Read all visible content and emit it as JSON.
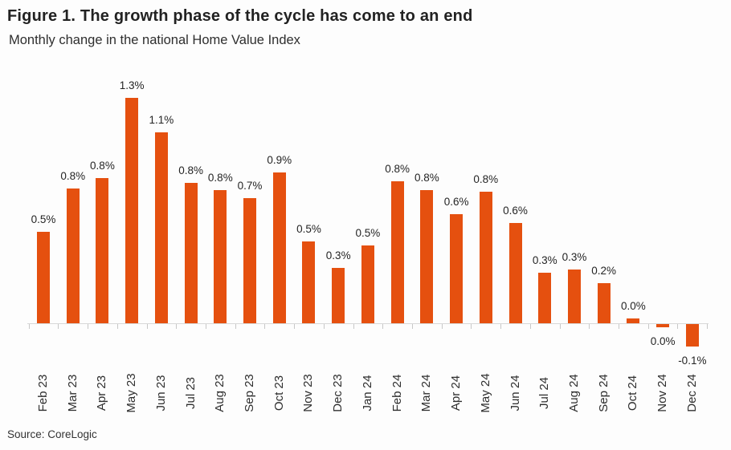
{
  "figure": {
    "title": "Figure 1. The growth phase of the cycle has come to an end",
    "subtitle": "Monthly change in the national Home Value Index",
    "source": "Source: CoreLogic"
  },
  "colors": {
    "bar": "#E5500F",
    "axis": "#D8D8D8",
    "tick": "#C8C8C8",
    "text": "#242424"
  },
  "chart_data": {
    "type": "bar",
    "title": "Figure 1. The growth phase of the cycle has come to an end",
    "subtitle": "Monthly change in the national Home Value Index",
    "source": "Source: CoreLogic",
    "unit": "%",
    "xlabel": "",
    "ylabel": "",
    "ylim": [
      -0.2,
      1.4
    ],
    "grid": false,
    "legend": "none",
    "y_axis_shown": false,
    "bar_color": "#E5500F",
    "categories": [
      "Feb 23",
      "Mar 23",
      "Apr 23",
      "May 23",
      "Jun 23",
      "Jul 23",
      "Aug 23",
      "Sep 23",
      "Oct 23",
      "Nov 23",
      "Dec 23",
      "Jan 24",
      "Feb 24",
      "Mar 24",
      "Apr 24",
      "May 24",
      "Jun 24",
      "Jul 24",
      "Aug 24",
      "Sep 24",
      "Oct 24",
      "Nov 24",
      "Dec 24"
    ],
    "values": [
      0.5,
      0.8,
      0.8,
      1.3,
      1.1,
      0.8,
      0.8,
      0.7,
      0.9,
      0.5,
      0.3,
      0.5,
      0.8,
      0.8,
      0.6,
      0.8,
      0.6,
      0.3,
      0.3,
      0.2,
      0.0,
      0.0,
      -0.1
    ],
    "value_labels": [
      "0.5%",
      "0.8%",
      "0.8%",
      "1.3%",
      "1.1%",
      "0.8%",
      "0.8%",
      "0.7%",
      "0.9%",
      "0.5%",
      "0.3%",
      "0.5%",
      "0.8%",
      "0.8%",
      "0.6%",
      "0.8%",
      "0.6%",
      "0.3%",
      "0.3%",
      "0.2%",
      "0.0%",
      "0.0%",
      "-0.1%"
    ],
    "bar_heights_est": [
      0.53,
      0.78,
      0.84,
      1.3,
      1.1,
      0.81,
      0.77,
      0.72,
      0.87,
      0.47,
      0.32,
      0.45,
      0.82,
      0.77,
      0.63,
      0.76,
      0.58,
      0.29,
      0.31,
      0.23,
      0.03,
      -0.02,
      -0.13
    ]
  }
}
